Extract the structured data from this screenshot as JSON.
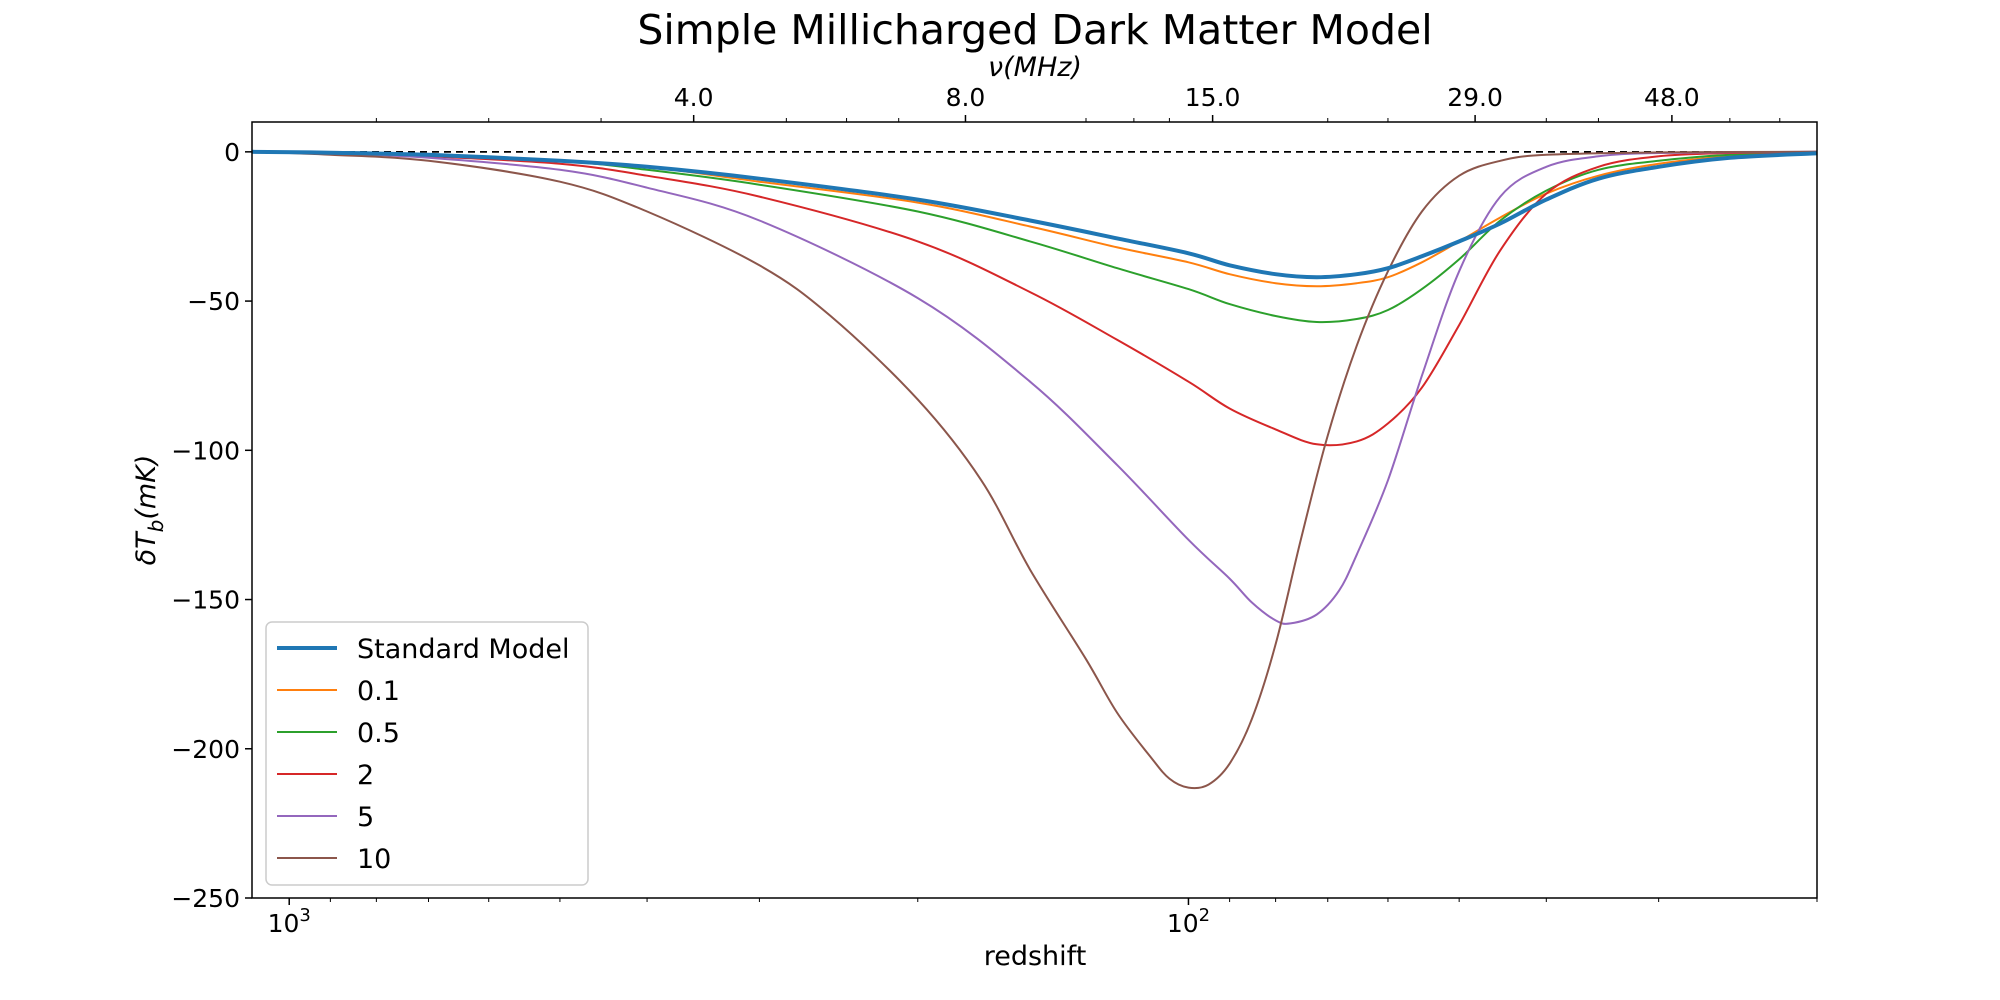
{
  "chart_data": {
    "type": "line",
    "title": "Simple Millicharged Dark Matter Model",
    "xlabel": "redshift",
    "ylabel_main": "δT",
    "ylabel_sub": "b",
    "ylabel_unit": "(mK)",
    "top_xlabel": "ν(MHz)",
    "x_scale": "log",
    "x_direction": "decreasing (high redshift on left)",
    "xlim": [
      1100,
      20
    ],
    "ylim": [
      -250,
      10
    ],
    "yticks": [
      0,
      -50,
      -100,
      -150,
      -200,
      -250
    ],
    "ytick_labels": [
      "0",
      "−50",
      "−100",
      "−150",
      "−200",
      "−250"
    ],
    "xticks": [
      {
        "value": 1000,
        "base": "10",
        "exp": "3"
      },
      {
        "value": 100,
        "base": "10",
        "exp": "2"
      }
    ],
    "top_xticks": [
      {
        "redshift": 355,
        "label": "4.0"
      },
      {
        "redshift": 177,
        "label": "8.0"
      },
      {
        "redshift": 94,
        "label": "15.0"
      },
      {
        "redshift": 48,
        "label": "29.0"
      },
      {
        "redshift": 29,
        "label": "48.0"
      }
    ],
    "reference_line": {
      "y": 0,
      "style": "dashed",
      "color": "#000000"
    },
    "legend": {
      "position": "lower-left"
    },
    "series": [
      {
        "name": "Standard Model",
        "color": "#1f77b4",
        "linewidth": 4,
        "points": [
          [
            1100,
            0
          ],
          [
            900,
            -0.3
          ],
          [
            700,
            -1
          ],
          [
            500,
            -3
          ],
          [
            400,
            -5
          ],
          [
            300,
            -9
          ],
          [
            200,
            -16
          ],
          [
            150,
            -23
          ],
          [
            120,
            -29
          ],
          [
            100,
            -34
          ],
          [
            90,
            -38
          ],
          [
            80,
            -41
          ],
          [
            72,
            -42
          ],
          [
            65,
            -41
          ],
          [
            60,
            -39
          ],
          [
            55,
            -35
          ],
          [
            50,
            -30
          ],
          [
            45,
            -24
          ],
          [
            40,
            -16
          ],
          [
            35,
            -9
          ],
          [
            30,
            -5
          ],
          [
            25,
            -2
          ],
          [
            20,
            -0.5
          ]
        ]
      },
      {
        "name": "0.1",
        "color": "#ff7f0e",
        "linewidth": 2,
        "points": [
          [
            1100,
            0
          ],
          [
            900,
            -0.3
          ],
          [
            700,
            -1
          ],
          [
            500,
            -3
          ],
          [
            400,
            -5
          ],
          [
            300,
            -10
          ],
          [
            200,
            -17
          ],
          [
            150,
            -25
          ],
          [
            120,
            -32
          ],
          [
            100,
            -37
          ],
          [
            90,
            -41
          ],
          [
            80,
            -44
          ],
          [
            72,
            -45
          ],
          [
            65,
            -44
          ],
          [
            60,
            -42
          ],
          [
            55,
            -37
          ],
          [
            50,
            -30
          ],
          [
            45,
            -22
          ],
          [
            40,
            -14
          ],
          [
            35,
            -8
          ],
          [
            30,
            -4
          ],
          [
            25,
            -1.5
          ],
          [
            20,
            -0.3
          ]
        ]
      },
      {
        "name": "0.5",
        "color": "#2ca02c",
        "linewidth": 2,
        "points": [
          [
            1100,
            0
          ],
          [
            900,
            -0.3
          ],
          [
            700,
            -1
          ],
          [
            500,
            -3
          ],
          [
            400,
            -6
          ],
          [
            300,
            -11
          ],
          [
            200,
            -20
          ],
          [
            150,
            -30
          ],
          [
            120,
            -39
          ],
          [
            100,
            -46
          ],
          [
            90,
            -51
          ],
          [
            80,
            -55
          ],
          [
            72,
            -57
          ],
          [
            65,
            -56
          ],
          [
            60,
            -53
          ],
          [
            55,
            -46
          ],
          [
            50,
            -36
          ],
          [
            45,
            -23
          ],
          [
            40,
            -13
          ],
          [
            35,
            -6
          ],
          [
            30,
            -3
          ],
          [
            25,
            -1
          ],
          [
            20,
            -0.2
          ]
        ]
      },
      {
        "name": "2",
        "color": "#d62728",
        "linewidth": 2,
        "points": [
          [
            1100,
            0
          ],
          [
            900,
            -0.4
          ],
          [
            700,
            -1.5
          ],
          [
            500,
            -4
          ],
          [
            400,
            -8
          ],
          [
            300,
            -15
          ],
          [
            200,
            -30
          ],
          [
            150,
            -47
          ],
          [
            120,
            -63
          ],
          [
            100,
            -77
          ],
          [
            90,
            -86
          ],
          [
            80,
            -93
          ],
          [
            72,
            -98
          ],
          [
            65,
            -97
          ],
          [
            60,
            -91
          ],
          [
            55,
            -79
          ],
          [
            50,
            -58
          ],
          [
            45,
            -33
          ],
          [
            40,
            -14
          ],
          [
            35,
            -5
          ],
          [
            30,
            -1.5
          ],
          [
            25,
            -0.4
          ],
          [
            20,
            0
          ]
        ]
      },
      {
        "name": "5",
        "color": "#9467bd",
        "linewidth": 2,
        "points": [
          [
            1100,
            0
          ],
          [
            900,
            -0.5
          ],
          [
            700,
            -2
          ],
          [
            500,
            -6
          ],
          [
            400,
            -12
          ],
          [
            300,
            -23
          ],
          [
            200,
            -49
          ],
          [
            150,
            -77
          ],
          [
            120,
            -105
          ],
          [
            100,
            -130
          ],
          [
            90,
            -143
          ],
          [
            85,
            -151
          ],
          [
            80,
            -157
          ],
          [
            77,
            -158
          ],
          [
            72,
            -155
          ],
          [
            68,
            -147
          ],
          [
            65,
            -135
          ],
          [
            60,
            -110
          ],
          [
            55,
            -75
          ],
          [
            50,
            -40
          ],
          [
            45,
            -15
          ],
          [
            40,
            -5
          ],
          [
            35,
            -1.5
          ],
          [
            30,
            -0.4
          ],
          [
            20,
            0
          ]
        ]
      },
      {
        "name": "10",
        "color": "#8c564b",
        "linewidth": 2,
        "points": [
          [
            1100,
            0
          ],
          [
            900,
            -1
          ],
          [
            700,
            -3
          ],
          [
            500,
            -10
          ],
          [
            400,
            -20
          ],
          [
            300,
            -38
          ],
          [
            250,
            -55
          ],
          [
            200,
            -83
          ],
          [
            170,
            -110
          ],
          [
            150,
            -140
          ],
          [
            130,
            -170
          ],
          [
            120,
            -188
          ],
          [
            110,
            -203
          ],
          [
            105,
            -210
          ],
          [
            100,
            -213
          ],
          [
            95,
            -212
          ],
          [
            90,
            -205
          ],
          [
            85,
            -190
          ],
          [
            80,
            -165
          ],
          [
            75,
            -130
          ],
          [
            70,
            -95
          ],
          [
            65,
            -65
          ],
          [
            60,
            -40
          ],
          [
            55,
            -20
          ],
          [
            50,
            -8
          ],
          [
            45,
            -3
          ],
          [
            40,
            -1
          ],
          [
            30,
            -0.2
          ],
          [
            20,
            0
          ]
        ]
      }
    ]
  }
}
